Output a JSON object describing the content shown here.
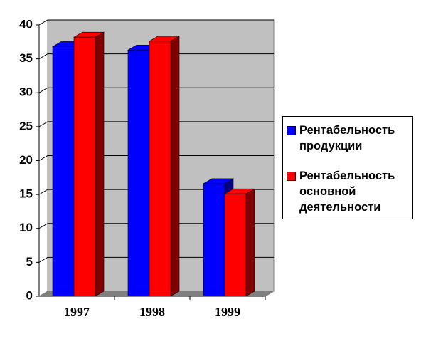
{
  "chart_data": {
    "type": "bar3d",
    "categories": [
      "1997",
      "1998",
      "1999"
    ],
    "series": [
      {
        "name": "Рентабельность продукции",
        "color": "#0000ff",
        "values": [
          36.8,
          36.3,
          16.6
        ]
      },
      {
        "name": "Рентабельность основной деятельности",
        "color": "#ff0000",
        "values": [
          38.2,
          37.6,
          15.1
        ]
      }
    ],
    "ylim": [
      0,
      40
    ],
    "yticks": [
      0,
      5,
      10,
      15,
      20,
      25,
      30,
      35,
      40
    ],
    "grid": true,
    "legend": "right"
  }
}
